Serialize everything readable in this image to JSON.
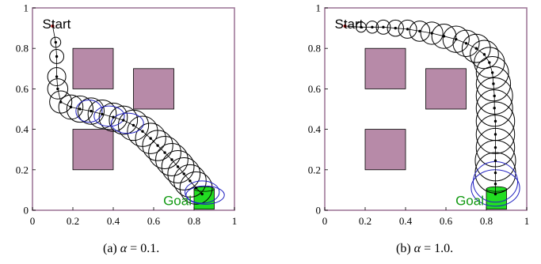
{
  "colors": {
    "frame": "#a07a9a",
    "obstacle_fill": "#b78aa8",
    "obstacle_edge": "#000000",
    "belief": "#000000",
    "belief_alt": "#2020c0",
    "path": "#000000",
    "start_marker": "#a00000",
    "goal_fill": "#22dd22",
    "goal_text": "#119911"
  },
  "chart_data": [
    {
      "type": "scatter",
      "title": "",
      "xlabel": "",
      "ylabel": "",
      "xlim": [
        0,
        1
      ],
      "ylim": [
        0,
        1
      ],
      "xticks": [
        "0",
        "0.2",
        "0.4",
        "0.6",
        "0.8",
        "1"
      ],
      "yticks": [
        "0",
        "0.2",
        "0.4",
        "0.6",
        "0.8",
        "1"
      ],
      "grid": false,
      "annotations": {
        "start_label": "Start",
        "goal_label": "Goal"
      },
      "start": [
        0.1,
        0.91
      ],
      "goal": {
        "center": [
          0.85,
          0.055
        ],
        "width": 0.1,
        "height": 0.1
      },
      "obstacles": [
        {
          "x0": 0.2,
          "y0": 0.6,
          "x1": 0.4,
          "y1": 0.8
        },
        {
          "x0": 0.5,
          "y0": 0.5,
          "x1": 0.7,
          "y1": 0.7
        },
        {
          "x0": 0.2,
          "y0": 0.2,
          "x1": 0.4,
          "y1": 0.4
        }
      ],
      "path": [
        [
          0.1,
          0.91
        ],
        [
          0.115,
          0.83
        ],
        [
          0.12,
          0.76
        ],
        [
          0.12,
          0.66
        ],
        [
          0.125,
          0.6
        ],
        [
          0.14,
          0.535
        ],
        [
          0.19,
          0.51
        ],
        [
          0.235,
          0.5
        ],
        [
          0.29,
          0.49
        ],
        [
          0.345,
          0.475
        ],
        [
          0.4,
          0.46
        ],
        [
          0.45,
          0.445
        ],
        [
          0.5,
          0.42
        ],
        [
          0.545,
          0.39
        ],
        [
          0.585,
          0.355
        ],
        [
          0.62,
          0.32
        ],
        [
          0.655,
          0.285
        ],
        [
          0.69,
          0.25
        ],
        [
          0.72,
          0.215
        ],
        [
          0.75,
          0.18
        ],
        [
          0.78,
          0.145
        ],
        [
          0.81,
          0.11
        ],
        [
          0.84,
          0.08
        ]
      ],
      "beliefs": [
        {
          "x": 0.115,
          "y": 0.83,
          "r": 0.025
        },
        {
          "x": 0.12,
          "y": 0.76,
          "r": 0.035
        },
        {
          "x": 0.12,
          "y": 0.66,
          "r": 0.045
        },
        {
          "x": 0.125,
          "y": 0.6,
          "r": 0.05
        },
        {
          "x": 0.14,
          "y": 0.535,
          "r": 0.055
        },
        {
          "x": 0.19,
          "y": 0.51,
          "r": 0.06
        },
        {
          "x": 0.235,
          "y": 0.5,
          "r": 0.065
        },
        {
          "x": 0.29,
          "y": 0.49,
          "r": 0.065
        },
        {
          "x": 0.345,
          "y": 0.475,
          "r": 0.07
        },
        {
          "x": 0.4,
          "y": 0.46,
          "r": 0.07
        },
        {
          "x": 0.45,
          "y": 0.445,
          "r": 0.07
        },
        {
          "x": 0.5,
          "y": 0.42,
          "r": 0.075
        },
        {
          "x": 0.545,
          "y": 0.39,
          "r": 0.075
        },
        {
          "x": 0.585,
          "y": 0.355,
          "r": 0.075
        },
        {
          "x": 0.62,
          "y": 0.32,
          "r": 0.075
        },
        {
          "x": 0.655,
          "y": 0.285,
          "r": 0.08
        },
        {
          "x": 0.69,
          "y": 0.25,
          "r": 0.08
        },
        {
          "x": 0.72,
          "y": 0.215,
          "r": 0.08
        },
        {
          "x": 0.75,
          "y": 0.18,
          "r": 0.08
        },
        {
          "x": 0.78,
          "y": 0.145,
          "r": 0.08
        },
        {
          "x": 0.81,
          "y": 0.11,
          "r": 0.08
        }
      ],
      "beliefs_alt": [
        {
          "x": 0.28,
          "y": 0.49,
          "rx": 0.065,
          "ry": 0.055
        },
        {
          "x": 0.38,
          "y": 0.465,
          "rx": 0.075,
          "ry": 0.05
        },
        {
          "x": 0.47,
          "y": 0.43,
          "rx": 0.08,
          "ry": 0.05
        },
        {
          "x": 0.84,
          "y": 0.09,
          "rx": 0.085,
          "ry": 0.055
        },
        {
          "x": 0.855,
          "y": 0.075,
          "rx": 0.095,
          "ry": 0.045
        }
      ],
      "caption": {
        "prefix": "(a) ",
        "symbol": "α",
        "value": " = 0.1."
      }
    },
    {
      "type": "scatter",
      "title": "",
      "xlabel": "",
      "ylabel": "",
      "xlim": [
        0,
        1
      ],
      "ylim": [
        0,
        1
      ],
      "xticks": [
        "0",
        "0.2",
        "0.4",
        "0.6",
        "0.8",
        "1"
      ],
      "yticks": [
        "0",
        "0.2",
        "0.4",
        "0.6",
        "0.8",
        "1"
      ],
      "grid": false,
      "annotations": {
        "start_label": "Start",
        "goal_label": "Goal"
      },
      "start": [
        0.1,
        0.91
      ],
      "goal": {
        "center": [
          0.85,
          0.055
        ],
        "width": 0.1,
        "height": 0.1
      },
      "obstacles": [
        {
          "x0": 0.2,
          "y0": 0.6,
          "x1": 0.4,
          "y1": 0.8
        },
        {
          "x0": 0.5,
          "y0": 0.5,
          "x1": 0.7,
          "y1": 0.7
        },
        {
          "x0": 0.2,
          "y0": 0.2,
          "x1": 0.4,
          "y1": 0.4
        }
      ],
      "path": [
        [
          0.1,
          0.91
        ],
        [
          0.18,
          0.905
        ],
        [
          0.235,
          0.905
        ],
        [
          0.29,
          0.905
        ],
        [
          0.35,
          0.9
        ],
        [
          0.41,
          0.895
        ],
        [
          0.47,
          0.885
        ],
        [
          0.53,
          0.875
        ],
        [
          0.59,
          0.86
        ],
        [
          0.65,
          0.845
        ],
        [
          0.7,
          0.825
        ],
        [
          0.75,
          0.8
        ],
        [
          0.79,
          0.77
        ],
        [
          0.815,
          0.73
        ],
        [
          0.83,
          0.68
        ],
        [
          0.835,
          0.625
        ],
        [
          0.84,
          0.565
        ],
        [
          0.84,
          0.505
        ],
        [
          0.845,
          0.44
        ],
        [
          0.845,
          0.375
        ],
        [
          0.845,
          0.31
        ],
        [
          0.845,
          0.245
        ],
        [
          0.845,
          0.185
        ],
        [
          0.845,
          0.13
        ],
        [
          0.845,
          0.08
        ]
      ],
      "beliefs": [
        {
          "x": 0.18,
          "y": 0.905,
          "r": 0.025
        },
        {
          "x": 0.235,
          "y": 0.905,
          "r": 0.03
        },
        {
          "x": 0.29,
          "y": 0.905,
          "r": 0.035
        },
        {
          "x": 0.35,
          "y": 0.9,
          "r": 0.04
        },
        {
          "x": 0.41,
          "y": 0.895,
          "r": 0.045
        },
        {
          "x": 0.47,
          "y": 0.885,
          "r": 0.05
        },
        {
          "x": 0.53,
          "y": 0.875,
          "r": 0.055
        },
        {
          "x": 0.59,
          "y": 0.86,
          "r": 0.06
        },
        {
          "x": 0.65,
          "y": 0.845,
          "r": 0.065
        },
        {
          "x": 0.7,
          "y": 0.825,
          "r": 0.065
        },
        {
          "x": 0.75,
          "y": 0.8,
          "r": 0.07
        },
        {
          "x": 0.79,
          "y": 0.77,
          "r": 0.07
        },
        {
          "x": 0.815,
          "y": 0.73,
          "r": 0.075
        },
        {
          "x": 0.83,
          "y": 0.68,
          "r": 0.08
        },
        {
          "x": 0.835,
          "y": 0.625,
          "r": 0.085
        },
        {
          "x": 0.84,
          "y": 0.565,
          "r": 0.09
        },
        {
          "x": 0.84,
          "y": 0.505,
          "r": 0.09
        },
        {
          "x": 0.845,
          "y": 0.44,
          "r": 0.095
        },
        {
          "x": 0.845,
          "y": 0.375,
          "r": 0.095
        },
        {
          "x": 0.845,
          "y": 0.31,
          "r": 0.095
        },
        {
          "x": 0.845,
          "y": 0.245,
          "r": 0.1
        },
        {
          "x": 0.845,
          "y": 0.185,
          "r": 0.1
        }
      ],
      "beliefs_alt": [
        {
          "x": 0.845,
          "y": 0.14,
          "rx": 0.11,
          "ry": 0.1
        },
        {
          "x": 0.845,
          "y": 0.11,
          "rx": 0.12,
          "ry": 0.09
        }
      ],
      "caption": {
        "prefix": "(b) ",
        "symbol": "α",
        "value": " = 1.0."
      }
    }
  ]
}
